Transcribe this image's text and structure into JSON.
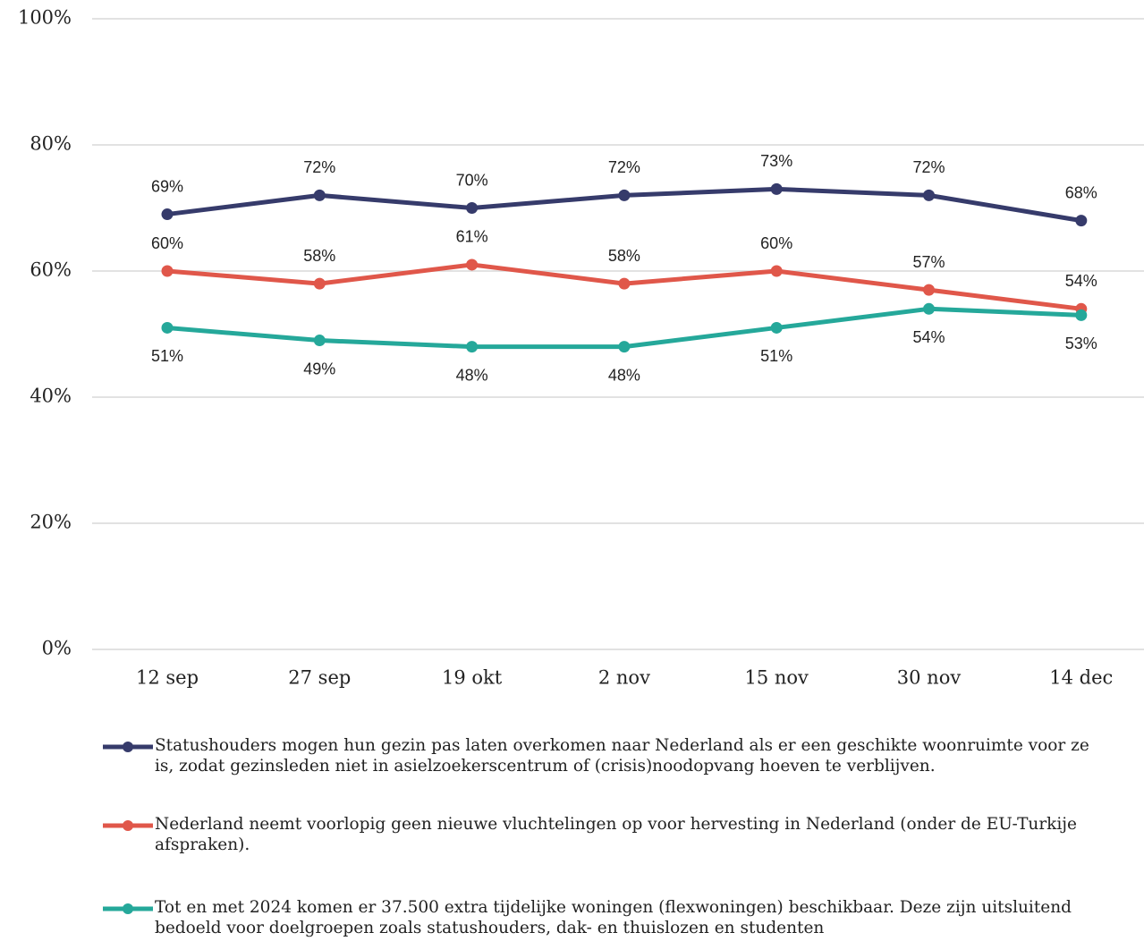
{
  "chart_data": {
    "type": "line",
    "categories": [
      "12 sep",
      "27 sep",
      "19 okt",
      "2 nov",
      "15 nov",
      "30 nov",
      "14 dec"
    ],
    "ylim": [
      0,
      100
    ],
    "yticks": [
      {
        "value": 0,
        "label": "0%"
      },
      {
        "value": 20,
        "label": "20%"
      },
      {
        "value": 40,
        "label": "40%"
      },
      {
        "value": 60,
        "label": "60%"
      },
      {
        "value": 80,
        "label": "80%"
      },
      {
        "value": 100,
        "label": "100%"
      }
    ],
    "grid": true,
    "series": [
      {
        "name": "Statushouders mogen hun gezin pas laten overkomen naar Nederland als er een geschikte woonruimte voor ze is, zodat gezinsleden niet in asielzoekerscentrum of (crisis)noodopvang hoeven te verblijven.",
        "color": "#363b6b",
        "label_position": "above",
        "values": [
          69,
          72,
          70,
          72,
          73,
          72,
          68
        ],
        "value_labels": [
          "69%",
          "72%",
          "70%",
          "72%",
          "73%",
          "72%",
          "68%"
        ]
      },
      {
        "name": "Nederland neemt voorlopig geen nieuwe vluchtelingen op voor hervesting in Nederland (onder de EU-Turkije afspraken).",
        "color": "#e0574a",
        "label_position": "above",
        "values": [
          60,
          58,
          61,
          58,
          60,
          57,
          54
        ],
        "value_labels": [
          "60%",
          "58%",
          "61%",
          "58%",
          "60%",
          "57%",
          "54%"
        ]
      },
      {
        "name": "Tot en met 2024 komen er 37.500 extra tijdelijke woningen (flexwoningen) beschikbaar. Deze zijn uitsluitend bedoeld voor doelgroepen zoals statushouders, dak- en thuislozen en studenten",
        "color": "#25a89a",
        "label_position": "below",
        "values": [
          51,
          49,
          48,
          48,
          51,
          54,
          53
        ],
        "value_labels": [
          "51%",
          "49%",
          "48%",
          "48%",
          "51%",
          "54%",
          "53%"
        ]
      }
    ]
  }
}
